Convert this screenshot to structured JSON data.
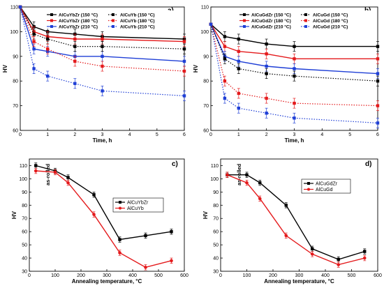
{
  "chart_data": [
    {
      "type": "line",
      "panel_label": "a)",
      "xlabel": "Time, h",
      "ylabel": "HV",
      "xlim": [
        0,
        6
      ],
      "ylim": [
        60,
        110
      ],
      "xticks": [
        0,
        1,
        2,
        3,
        4,
        5,
        6
      ],
      "yticks": [
        60,
        70,
        80,
        90,
        100,
        110
      ],
      "legend_position": "top-right",
      "series": [
        {
          "name": "AlCuYbZr (150 °C)",
          "color": "#000000",
          "style": "solid",
          "marker": "square",
          "x": [
            0,
            0.5,
            1,
            2,
            3,
            6
          ],
          "y": [
            110,
            102,
            100,
            99,
            98,
            97
          ],
          "err": [
            0,
            2,
            2,
            2,
            2,
            2
          ]
        },
        {
          "name": "AlCuYbZr (180 °C)",
          "color": "#e41a1c",
          "style": "solid",
          "marker": "square",
          "x": [
            0,
            0.5,
            1,
            2,
            3,
            6
          ],
          "y": [
            110,
            100,
            98,
            97,
            97,
            96
          ],
          "err": [
            0,
            2,
            2,
            2,
            2,
            2
          ]
        },
        {
          "name": "AlCuYbZr (210 °C)",
          "color": "#1f3fd6",
          "style": "solid",
          "marker": "square",
          "x": [
            0,
            0.5,
            1,
            2,
            3,
            6
          ],
          "y": [
            110,
            93,
            92,
            90,
            90,
            88
          ],
          "err": [
            0,
            2,
            2,
            2,
            2,
            2
          ]
        },
        {
          "name": "AlCuYb (150 °C)",
          "color": "#000000",
          "style": "dotted",
          "marker": "square",
          "x": [
            0,
            0.5,
            1,
            2,
            3,
            6
          ],
          "y": [
            110,
            99,
            97,
            94,
            94,
            93
          ],
          "err": [
            0,
            2,
            2,
            2,
            2,
            2
          ]
        },
        {
          "name": "AlCuYb (180 °C)",
          "color": "#e41a1c",
          "style": "dotted",
          "marker": "square",
          "x": [
            0,
            0.5,
            1,
            2,
            3,
            6
          ],
          "y": [
            110,
            96,
            93,
            88,
            86,
            84
          ],
          "err": [
            0,
            2,
            2,
            2,
            2,
            2
          ]
        },
        {
          "name": "AlCuYb (210 °C)",
          "color": "#1f3fd6",
          "style": "dotted",
          "marker": "square",
          "x": [
            0,
            0.5,
            1,
            2,
            3,
            6
          ],
          "y": [
            110,
            85,
            82,
            79,
            76,
            74
          ],
          "err": [
            0,
            2,
            2,
            2,
            2,
            2
          ]
        }
      ]
    },
    {
      "type": "line",
      "panel_label": "b)",
      "xlabel": "Time, h",
      "ylabel": "HV",
      "xlim": [
        0,
        6
      ],
      "ylim": [
        60,
        110
      ],
      "xticks": [
        0,
        1,
        2,
        3,
        4,
        5,
        6
      ],
      "yticks": [
        60,
        70,
        80,
        90,
        100,
        110
      ],
      "legend_position": "top-right",
      "series": [
        {
          "name": "AlCuGdZr (150 °C)",
          "color": "#000000",
          "style": "solid",
          "marker": "square",
          "x": [
            0,
            0.5,
            1,
            2,
            3,
            6
          ],
          "y": [
            103,
            98,
            97,
            95,
            94,
            94
          ],
          "err": [
            0,
            2,
            2,
            2,
            2,
            2
          ]
        },
        {
          "name": "AlCuGdZr (180 °C)",
          "color": "#e41a1c",
          "style": "solid",
          "marker": "square",
          "x": [
            0,
            0.5,
            1,
            2,
            3,
            6
          ],
          "y": [
            103,
            94,
            92,
            91,
            89,
            89
          ],
          "err": [
            0,
            2,
            2,
            2,
            2,
            2
          ]
        },
        {
          "name": "AlCuGdZr (210 °C)",
          "color": "#1f3fd6",
          "style": "solid",
          "marker": "square",
          "x": [
            0,
            0.5,
            1,
            2,
            3,
            6
          ],
          "y": [
            103,
            90,
            88,
            86,
            85,
            83
          ],
          "err": [
            0,
            2,
            2,
            2,
            2,
            2
          ]
        },
        {
          "name": "AlCuGd (150 °C)",
          "color": "#000000",
          "style": "dotted",
          "marker": "square",
          "x": [
            0,
            0.5,
            1,
            2,
            3,
            6
          ],
          "y": [
            103,
            89,
            85,
            83,
            82,
            80
          ],
          "err": [
            0,
            2,
            2,
            2,
            2,
            2
          ]
        },
        {
          "name": "AlCuGd (180 °C)",
          "color": "#e41a1c",
          "style": "dotted",
          "marker": "square",
          "x": [
            0,
            0.5,
            1,
            2,
            3,
            6
          ],
          "y": [
            103,
            80,
            75,
            73,
            71,
            70
          ],
          "err": [
            0,
            2,
            2,
            2,
            2,
            2
          ]
        },
        {
          "name": "AlCuGd (210 °C)",
          "color": "#1f3fd6",
          "style": "dotted",
          "marker": "square",
          "x": [
            0,
            0.5,
            1,
            2,
            3,
            6
          ],
          "y": [
            103,
            73,
            69,
            67,
            65,
            63
          ],
          "err": [
            0,
            2,
            2,
            2,
            2,
            2
          ]
        }
      ]
    },
    {
      "type": "line",
      "panel_label": "c)",
      "xlabel": "Annealing temperature, °C",
      "ylabel": "HV",
      "annotation": "as-rolled",
      "xlim": [
        0,
        600
      ],
      "ylim": [
        30,
        115
      ],
      "xticks": [
        0,
        100,
        200,
        300,
        400,
        500,
        600
      ],
      "yticks": [
        30,
        40,
        50,
        60,
        70,
        80,
        90,
        100,
        110
      ],
      "legend_position": "center-right",
      "series": [
        {
          "name": "AlCuYbZr",
          "color": "#000000",
          "style": "solid",
          "marker": "square",
          "x": [
            25,
            100,
            150,
            250,
            350,
            450,
            550
          ],
          "y": [
            110,
            106,
            101,
            88,
            54,
            57,
            60
          ],
          "err": [
            2,
            2,
            2,
            2,
            2,
            2,
            2
          ]
        },
        {
          "name": "AlCuYb",
          "color": "#e41a1c",
          "style": "solid",
          "marker": "circle",
          "x": [
            25,
            100,
            150,
            250,
            350,
            450,
            550
          ],
          "y": [
            106,
            105,
            97,
            73,
            44,
            33,
            38
          ],
          "err": [
            2,
            2,
            2,
            2,
            2,
            2,
            2
          ]
        }
      ]
    },
    {
      "type": "line",
      "panel_label": "d)",
      "xlabel": "Annealing temperature, °C",
      "ylabel": "HV",
      "annotation": "as-rolled",
      "xlim": [
        0,
        600
      ],
      "ylim": [
        30,
        115
      ],
      "xticks": [
        0,
        100,
        200,
        300,
        400,
        500,
        600
      ],
      "yticks": [
        30,
        40,
        50,
        60,
        70,
        80,
        90,
        100,
        110
      ],
      "legend_position": "top-right",
      "series": [
        {
          "name": "AlCuGdZr",
          "color": "#000000",
          "style": "solid",
          "marker": "square",
          "x": [
            25,
            100,
            150,
            250,
            350,
            450,
            550
          ],
          "y": [
            103,
            103,
            97,
            80,
            47,
            39,
            45
          ],
          "err": [
            2,
            2,
            2,
            2,
            2,
            2,
            2
          ]
        },
        {
          "name": "AlCuGd",
          "color": "#e41a1c",
          "style": "solid",
          "marker": "circle",
          "x": [
            25,
            100,
            150,
            250,
            350,
            450,
            550
          ],
          "y": [
            103,
            97,
            85,
            57,
            43,
            35,
            40
          ],
          "err": [
            2,
            2,
            2,
            2,
            2,
            2,
            2
          ]
        }
      ]
    }
  ]
}
